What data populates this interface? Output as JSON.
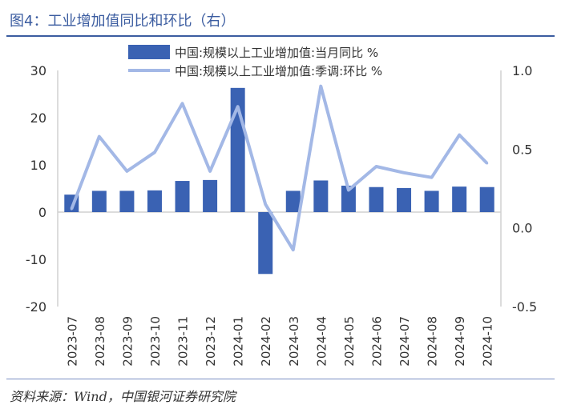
{
  "header": {
    "title": "图4：工业增加值同比和环比（右）"
  },
  "footer": {
    "source": "资料来源：Wind，中国银河证券研究院"
  },
  "colors": {
    "bar": "#3a62b3",
    "line": "#a3b8e6",
    "title": "#3b5ca0",
    "axis": "#d0d0d0",
    "text": "#333333"
  },
  "chart_data": {
    "type": "bar",
    "categories": [
      "2023-07",
      "2023-08",
      "2023-09",
      "2023-10",
      "2023-11",
      "2023-12",
      "2024-01",
      "2024-02",
      "2024-03",
      "2024-04",
      "2024-05",
      "2024-06",
      "2024-07",
      "2024-08",
      "2024-09",
      "2024-10"
    ],
    "series": [
      {
        "name": "中国:规模以上工业增加值:当月同比 %",
        "type": "bar",
        "axis": "left",
        "values": [
          3.7,
          4.5,
          4.5,
          4.6,
          6.6,
          6.8,
          26.3,
          -13.1,
          4.5,
          6.7,
          5.6,
          5.3,
          5.1,
          4.5,
          5.4,
          5.3
        ]
      },
      {
        "name": "中国:规模以上工业增加值:季调:环比 %",
        "type": "line",
        "axis": "right",
        "values": [
          0.12,
          0.58,
          0.36,
          0.48,
          0.79,
          0.36,
          0.77,
          0.15,
          -0.14,
          0.9,
          0.24,
          0.39,
          0.35,
          0.32,
          0.59,
          0.41
        ]
      }
    ],
    "left_axis": {
      "ylim": [
        -20,
        30
      ],
      "ticks": [
        "-20",
        "-10",
        "0",
        "10",
        "20",
        "30"
      ],
      "tick_values": [
        -20,
        -10,
        0,
        10,
        20,
        30
      ]
    },
    "right_axis": {
      "ylim": [
        -0.5,
        1.0
      ],
      "ticks": [
        "-0.5",
        "0.0",
        "0.5",
        "1.0"
      ],
      "tick_values": [
        -0.5,
        0.0,
        0.5,
        1.0
      ]
    },
    "legend_position": "top",
    "grid": false
  }
}
